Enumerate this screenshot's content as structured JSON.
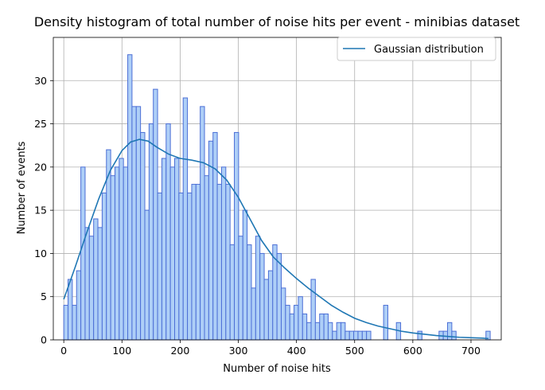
{
  "chart_data": {
    "type": "bar",
    "title": "Density histogram of total number of noise hits per event - minibias dataset",
    "xlabel": "Number of noise hits",
    "ylabel": "Number of events",
    "xlim": [
      -18,
      752
    ],
    "ylim": [
      0,
      35
    ],
    "xticks": [
      0,
      100,
      200,
      300,
      400,
      500,
      600,
      700
    ],
    "yticks": [
      0,
      5,
      10,
      15,
      20,
      25,
      30
    ],
    "grid": true,
    "legend_position": "top-right",
    "bin_width": 7.33,
    "bins": {
      "x_start": [
        0.0,
        7.33,
        14.66,
        21.99,
        29.32,
        36.65,
        43.98,
        51.31,
        58.64,
        65.97,
        73.3,
        80.63,
        87.96,
        95.29,
        102.62,
        109.95,
        117.28,
        124.61,
        131.94,
        139.27,
        146.6,
        153.93,
        161.26,
        168.59,
        175.92,
        183.25,
        190.58,
        197.91,
        205.24,
        212.57,
        219.9,
        227.23,
        234.56,
        241.89,
        249.22,
        256.55,
        263.88,
        271.21,
        278.54,
        285.87,
        293.2,
        300.53,
        307.86,
        315.19,
        322.52,
        329.85,
        337.18,
        344.51,
        351.84,
        359.17,
        366.5,
        373.83,
        381.16,
        388.49,
        395.82,
        403.15,
        410.48,
        417.81,
        425.14,
        432.47,
        439.8,
        447.13,
        454.46,
        461.79,
        469.12,
        476.45,
        483.78,
        491.11,
        498.44,
        505.77,
        513.1,
        520.43,
        549.75,
        571.74,
        608.39,
        645.04,
        652.37,
        659.7,
        667.03,
        725.67
      ],
      "counts": [
        4,
        7,
        4,
        8,
        20,
        13,
        12,
        14,
        13,
        17,
        22,
        19,
        20,
        21,
        20,
        33,
        27,
        27,
        24,
        15,
        25,
        29,
        17,
        21,
        25,
        20,
        21,
        17,
        28,
        17,
        18,
        18,
        27,
        19,
        23,
        24,
        18,
        20,
        18,
        11,
        24,
        12,
        15,
        11,
        6,
        12,
        10,
        7,
        8,
        11,
        10,
        6,
        4,
        3,
        4,
        5,
        3,
        2,
        7,
        2,
        3,
        3,
        2,
        1,
        2,
        2,
        1,
        1,
        1,
        1,
        1,
        1,
        4,
        2,
        1,
        1,
        1,
        2,
        1,
        1
      ]
    },
    "bar_color": "#aecff7",
    "bar_edge_color": "#4c6fd6",
    "series": [
      {
        "name": "Gaussian distribution",
        "color": "#1f77b4",
        "x": [
          0,
          20,
          40,
          60,
          80,
          100,
          115,
          130,
          145,
          160,
          180,
          200,
          220,
          240,
          260,
          280,
          300,
          320,
          340,
          360,
          380,
          400,
          420,
          440,
          460,
          480,
          500,
          520,
          540,
          560,
          580,
          600,
          620,
          640,
          660,
          680,
          700,
          720,
          730
        ],
        "values": [
          4.7,
          8.5,
          12.5,
          16.3,
          19.6,
          21.9,
          22.9,
          23.2,
          23.0,
          22.3,
          21.5,
          21.0,
          20.8,
          20.5,
          19.8,
          18.5,
          16.5,
          14.0,
          11.5,
          9.6,
          8.3,
          7.1,
          6.0,
          5.0,
          4.0,
          3.2,
          2.5,
          2.0,
          1.6,
          1.3,
          1.0,
          0.8,
          0.65,
          0.5,
          0.4,
          0.3,
          0.25,
          0.2,
          0.15
        ]
      }
    ]
  }
}
